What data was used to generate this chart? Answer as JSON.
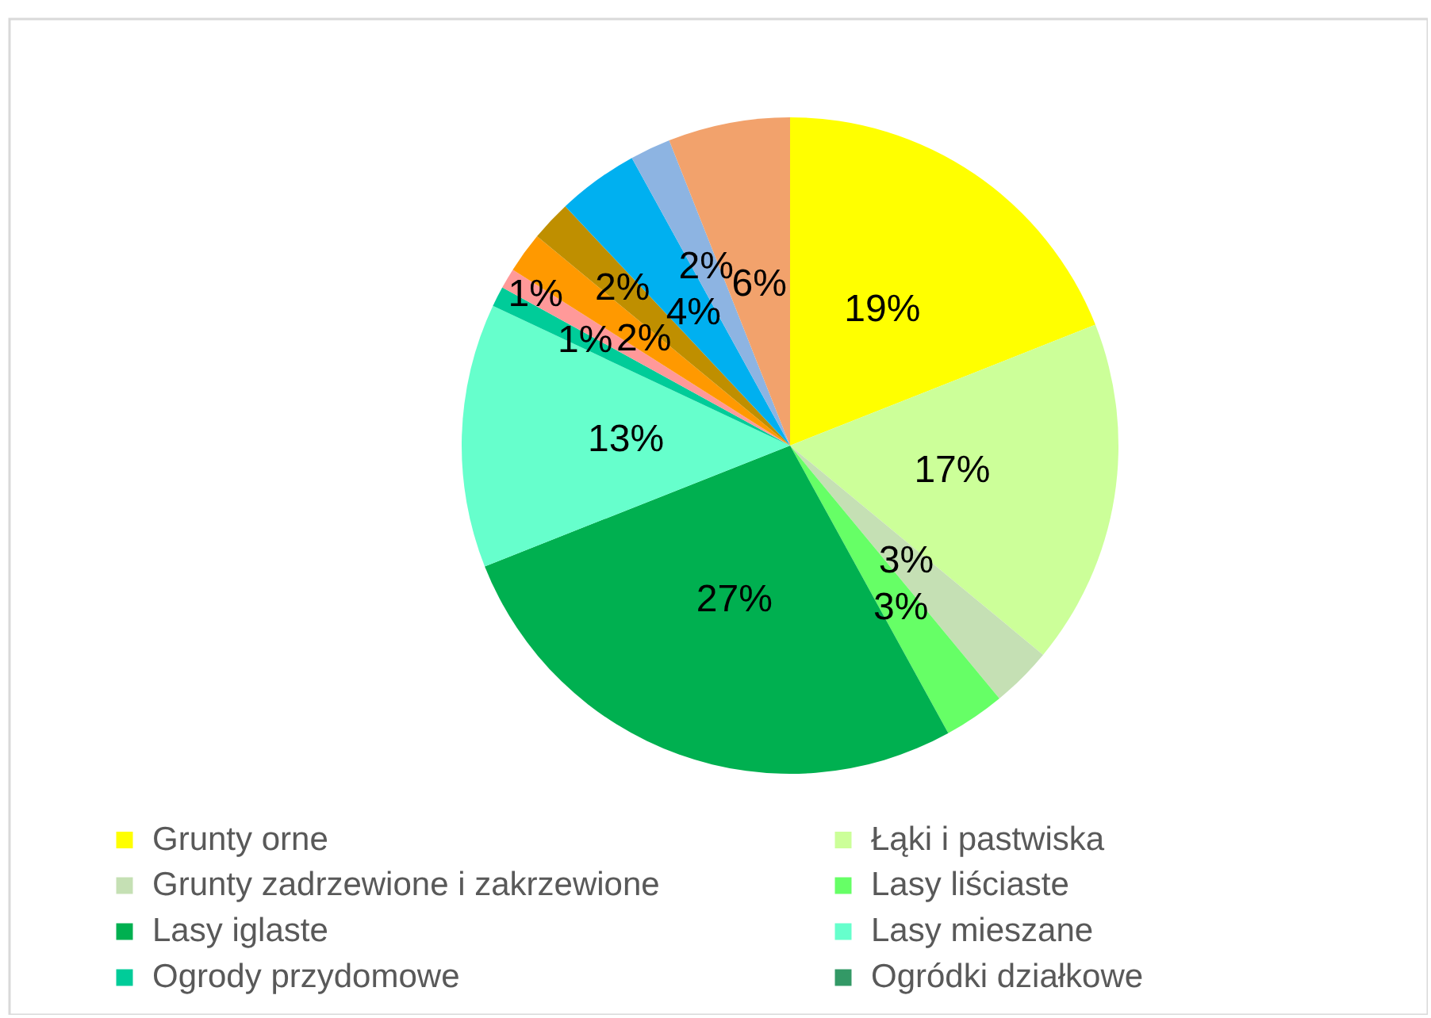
{
  "chart_data": {
    "type": "pie",
    "categories": [
      "Grunty orne",
      "Łąki i pastwiska",
      "Grunty zadrzewione i zakrzewione",
      "Lasy liściaste",
      "Lasy iglaste",
      "Lasy mieszane",
      "Ogrody przydomowe",
      "Ogródki działkowe",
      null,
      null,
      null,
      null,
      null,
      null
    ],
    "values": [
      19,
      17,
      3,
      3,
      27,
      13,
      1,
      0,
      1,
      2,
      2,
      4,
      2,
      6
    ],
    "colors": [
      "#ffff00",
      "#ccff99",
      "#c5e0b4",
      "#66ff66",
      "#00b050",
      "#66ffcc",
      "#00cc99",
      "#339966",
      "#ff9999",
      "#ff9900",
      "#bf8f00",
      "#00b0f0",
      "#8db4e2",
      "#f2a26c"
    ],
    "value_labels": [
      "19%",
      "17%",
      "3%",
      "3%",
      "27%",
      "13%",
      "1%",
      null,
      "1%",
      "2%",
      "2%",
      "4%",
      "2%",
      "6%"
    ],
    "legend": "bottom"
  }
}
